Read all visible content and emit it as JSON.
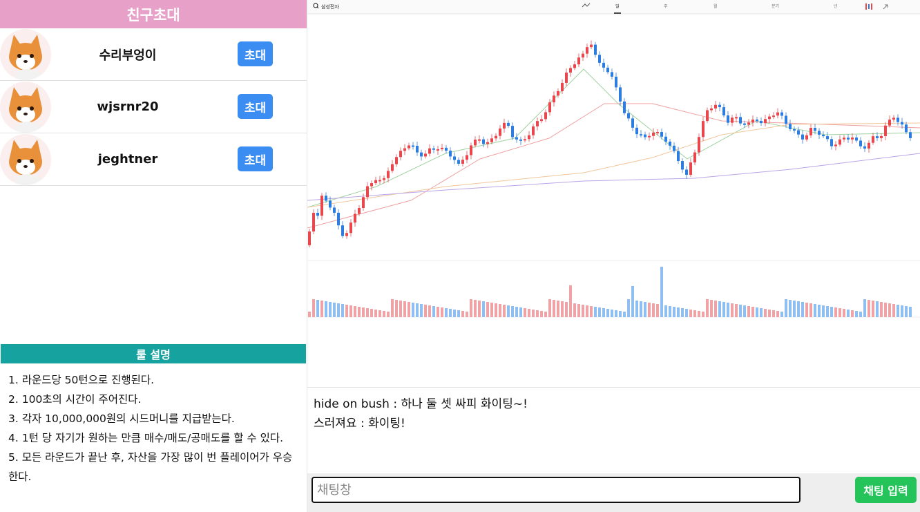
{
  "invite": {
    "title": "친구초대",
    "friends": [
      {
        "name": "수리부엉이",
        "button": "초대"
      },
      {
        "name": "wjsrnr20",
        "button": "초대"
      },
      {
        "name": "jeghtner",
        "button": "초대"
      }
    ]
  },
  "rules": {
    "title": "룰 설명",
    "items": [
      "1. 라운드당 50턴으로 진행된다.",
      "2. 100초의 시간이 주어진다.",
      "3. 각자 10,000,000원의 시드머니를 지급받는다.",
      "4. 1턴 당 자기가 원하는 만큼 매수/매도/공매도를 할 수 있다.",
      "5. 모든 라운드가 끝난 후, 자산을 가장 많이 번 플레이어가 우승한다."
    ]
  },
  "chart": {
    "search_text": "삼성전자",
    "tabs": [
      "일",
      "주",
      "월",
      "분기",
      "년"
    ]
  },
  "chat": {
    "messages": [
      "hide on bush : 하나 둘 셋 싸피 화이팅~!",
      "스러져요 : 화이팅!"
    ],
    "placeholder": "채팅창",
    "send_label": "채팅 입력"
  },
  "colors": {
    "up": "#e8474d",
    "down": "#2d7de0",
    "invite_header": "#e7a1c9",
    "rules_header": "#16a39f",
    "send": "#25c45a"
  }
}
